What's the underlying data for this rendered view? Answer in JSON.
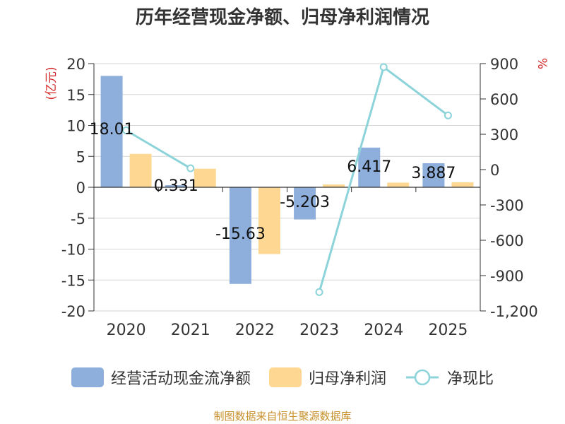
{
  "chart_data": {
    "type": "bar",
    "title": "历年经营现金净额、归母净利润情况",
    "categories": [
      "2020",
      "2021",
      "2022",
      "2023",
      "2024",
      "2025"
    ],
    "series": [
      {
        "name": "经营活动现金流净额",
        "type": "bar",
        "axis": "left",
        "color": "#8eaedb",
        "values": [
          18.01,
          0.331,
          -15.63,
          -5.203,
          6.417,
          3.887
        ],
        "labels": [
          "18.01",
          "0.331",
          "-15.63",
          "-5.203",
          "6.417",
          "3.887"
        ]
      },
      {
        "name": "归母净利润",
        "type": "bar",
        "axis": "left",
        "color": "#fed893",
        "values": [
          5.4,
          3.0,
          -10.8,
          0.45,
          0.75,
          0.8
        ]
      },
      {
        "name": "净现比",
        "type": "line",
        "axis": "right",
        "color": "#8cd4d9",
        "values": [
          333,
          11,
          null,
          -1040,
          870,
          460
        ]
      }
    ],
    "left_axis": {
      "label": "(亿元)",
      "min": -20,
      "max": 20,
      "ticks": [
        20,
        15,
        10,
        5,
        0,
        -5,
        -10,
        -15,
        -20
      ],
      "tick_labels": [
        "20",
        "15",
        "10",
        "5",
        "0",
        "-5",
        "-10",
        "-15",
        "-20"
      ]
    },
    "right_axis": {
      "label": "%",
      "min": -1200,
      "max": 900,
      "ticks": [
        900,
        600,
        300,
        0,
        -300,
        -600,
        -900,
        -1200
      ],
      "tick_labels": [
        "900",
        "600",
        "300",
        "0",
        "-300",
        "-600",
        "-900",
        "-1,200"
      ]
    },
    "legend_position": "bottom",
    "grid": true
  },
  "legend": {
    "cash_flow": "经营活动现金流净额",
    "net_profit": "归母净利润",
    "ratio": "净现比"
  },
  "source": "制图数据来自恒生聚源数据库",
  "colors": {
    "axis_label_red": "#d42a2a",
    "text": "#333333",
    "source": "#c8902c"
  }
}
